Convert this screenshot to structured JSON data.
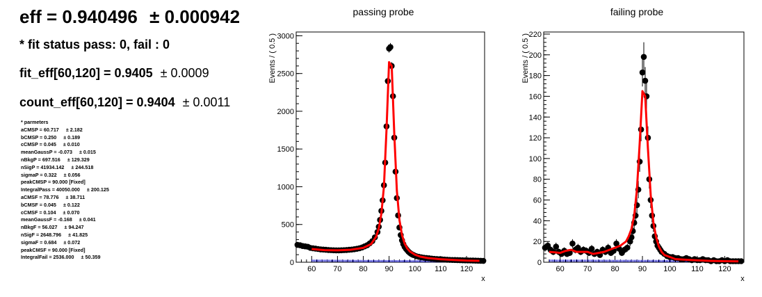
{
  "summary": {
    "eff_label": "eff = 0.940496",
    "eff_err": "± 0.000942",
    "fit_status": "* fit status pass: 0, fail : 0",
    "fit_eff_label": "fit_eff[60,120] = 0.9405",
    "fit_eff_err": "± 0.0009",
    "count_eff_label": "count_eff[60,120] = 0.9404",
    "count_eff_err": "± 0.0011"
  },
  "parameters": {
    "header": "* parmeters",
    "rows": [
      {
        "name": "aCMSP = 60.717",
        "err": "± 2.182"
      },
      {
        "name": "bCMSP = 0.250",
        "err": "± 0.189"
      },
      {
        "name": "cCMSP = 0.045",
        "err": "± 0.010"
      },
      {
        "name": "meanGaussP = -0.073",
        "err": "± 0.015"
      },
      {
        "name": "nBkgP = 697.516",
        "err": "± 129.329"
      },
      {
        "name": "nSigP = 41934.142",
        "err": "± 244.518"
      },
      {
        "name": "sigmaP = 0.322",
        "err": "± 0.056"
      },
      {
        "name": "peakCMSP = 90.000 [Fixed]",
        "err": ""
      },
      {
        "name": "IntegralPass = 40050.000",
        "err": "± 200.125"
      },
      {
        "name": "aCMSF = 78.776",
        "err": "± 38.711"
      },
      {
        "name": "bCMSF = 0.045",
        "err": "± 0.122"
      },
      {
        "name": "cCMSF = 0.104",
        "err": "± 0.070"
      },
      {
        "name": "meanGaussF = -0.168",
        "err": "± 0.041"
      },
      {
        "name": "nBkgF = 56.027",
        "err": "± 94.247"
      },
      {
        "name": "nSigF = 2648.796",
        "err": "± 41.825"
      },
      {
        "name": "sigmaF = 0.684",
        "err": "± 0.072"
      },
      {
        "name": "peakCMSF = 90.000 [Fixed]",
        "err": ""
      },
      {
        "name": "IntegralFail = 2536.000",
        "err": "± 50.359"
      }
    ]
  },
  "chart_data": [
    {
      "type": "scatter",
      "title": "passing probe",
      "xlabel": "x",
      "ylabel": "Events / ( 0.5 )",
      "xlim": [
        54,
        127
      ],
      "ylim": [
        0,
        3050
      ],
      "xticks": [
        60,
        70,
        80,
        90,
        100,
        110,
        120
      ],
      "xtick_labels": [
        "60",
        "70",
        "80",
        "90",
        "100",
        "110",
        "120"
      ],
      "yticks": [
        0,
        500,
        1000,
        1500,
        2000,
        2500,
        3000
      ],
      "ytick_labels": [
        "0",
        "500",
        "1000",
        "1500",
        "2000",
        "2500",
        "3000"
      ],
      "grid": false,
      "colors": {
        "data": "#000000",
        "fit": "#ff0000",
        "background": "#0000cc"
      },
      "points": {
        "x": [
          54.5,
          55.5,
          56.5,
          57.5,
          58.5,
          59.5,
          60.5,
          61.5,
          62.5,
          63.5,
          64.5,
          65.5,
          66.5,
          67.5,
          68.5,
          69.5,
          70.5,
          71.5,
          72.5,
          73.5,
          74.5,
          75.5,
          76.5,
          77.5,
          78.5,
          79.5,
          80.5,
          81.5,
          82.5,
          83.5,
          84.5,
          85.5,
          86.0,
          86.5,
          87.0,
          87.5,
          88.0,
          88.5,
          89.0,
          89.5,
          90.0,
          90.5,
          91.0,
          91.5,
          92.0,
          92.5,
          93.0,
          93.5,
          94.0,
          94.5,
          95.0,
          95.5,
          96.0,
          96.5,
          97.0,
          97.5,
          98.0,
          98.5,
          99.0,
          99.5,
          100.5,
          101.5,
          102.5,
          103.5,
          104.5,
          105.5,
          106.5,
          107.5,
          108.5,
          109.5,
          110.5,
          111.5,
          112.5,
          113.5,
          114.5,
          115.5,
          116.5,
          117.5,
          118.5,
          119.5,
          120.5,
          121.5,
          122.5,
          123.5,
          124.5,
          125.5,
          126.5
        ],
        "y": [
          230,
          225,
          215,
          210,
          205,
          190,
          185,
          180,
          175,
          170,
          168,
          165,
          162,
          160,
          158,
          157,
          157,
          158,
          160,
          162,
          165,
          168,
          172,
          178,
          185,
          195,
          210,
          225,
          250,
          280,
          330,
          400,
          470,
          560,
          680,
          820,
          1020,
          1320,
          1800,
          2400,
          2830,
          2850,
          2600,
          2200,
          1650,
          1200,
          850,
          620,
          460,
          360,
          290,
          240,
          205,
          180,
          160,
          140,
          125,
          112,
          102,
          95,
          80,
          72,
          65,
          60,
          56,
          52,
          48,
          45,
          42,
          40,
          38,
          35,
          33,
          31,
          30,
          29,
          28,
          27,
          26,
          25,
          24,
          23,
          22,
          21,
          20,
          19,
          18
        ]
      },
      "fit_curve": {
        "x": [
          60,
          65,
          70,
          75,
          80,
          83,
          85,
          86,
          87,
          88,
          89,
          90,
          91,
          92,
          93,
          94,
          95,
          96,
          97,
          98,
          100,
          102,
          105,
          110,
          115,
          120,
          125
        ],
        "y": [
          175,
          160,
          158,
          165,
          190,
          240,
          340,
          450,
          640,
          1000,
          1750,
          2650,
          2600,
          1700,
          950,
          560,
          360,
          250,
          185,
          145,
          100,
          75,
          55,
          40,
          30,
          22,
          18
        ]
      },
      "bkg_curve": {
        "x": [
          60,
          70,
          80,
          90,
          100,
          110,
          120,
          125
        ],
        "y": [
          20,
          18,
          16,
          15,
          13,
          12,
          10,
          10
        ]
      }
    },
    {
      "type": "scatter",
      "title": "failing probe",
      "xlabel": "x",
      "ylabel": "Events / ( 0.5 )",
      "xlim": [
        54,
        127
      ],
      "ylim": [
        0,
        222
      ],
      "xticks": [
        60,
        70,
        80,
        90,
        100,
        110,
        120
      ],
      "xtick_labels": [
        "60",
        "70",
        "80",
        "90",
        "100",
        "110",
        "120"
      ],
      "yticks": [
        0,
        20,
        40,
        60,
        80,
        100,
        120,
        140,
        160,
        180,
        200,
        220
      ],
      "ytick_labels": [
        "0",
        "20",
        "40",
        "60",
        "80",
        "100",
        "120",
        "140",
        "160",
        "180",
        "200",
        "220"
      ],
      "grid": false,
      "colors": {
        "data": "#000000",
        "fit": "#ff0000",
        "background": "#0000cc"
      },
      "points": {
        "x": [
          54.5,
          55.5,
          56.5,
          57.5,
          58.5,
          59.5,
          60.5,
          61.5,
          62.5,
          63.5,
          64.5,
          65.5,
          66.5,
          67.5,
          68.5,
          69.5,
          70.5,
          71.5,
          72.5,
          73.5,
          74.5,
          75.5,
          76.5,
          77.5,
          78.5,
          79.5,
          80.5,
          81.5,
          82.5,
          83.5,
          84.5,
          85.5,
          86.0,
          86.5,
          87.0,
          87.5,
          88.0,
          88.5,
          89.0,
          89.5,
          90.0,
          90.5,
          91.0,
          91.5,
          92.0,
          92.5,
          93.0,
          93.5,
          94.0,
          94.5,
          95.0,
          95.5,
          96.0,
          96.5,
          97.0,
          98.0,
          99.0,
          100.0,
          101.0,
          102.0,
          103.0,
          104.0,
          105.0,
          106.0,
          107.0,
          108.0,
          109.0,
          110.0,
          111.0,
          112.0,
          113.0,
          114.0,
          115.0,
          116.0,
          117.0,
          118.0,
          119.0,
          120.0,
          121.0,
          122.0,
          123.0,
          124.0,
          125.0,
          126.0
        ],
        "y": [
          14,
          16,
          12,
          10,
          15,
          10,
          8,
          11,
          8,
          9,
          18,
          12,
          14,
          10,
          12,
          11,
          9,
          13,
          8,
          10,
          7,
          12,
          10,
          14,
          9,
          11,
          18,
          13,
          9,
          12,
          14,
          20,
          24,
          30,
          38,
          45,
          55,
          70,
          97,
          128,
          183,
          198,
          175,
          160,
          120,
          80,
          60,
          45,
          35,
          25,
          20,
          16,
          14,
          12,
          10,
          8,
          6,
          5,
          5,
          4,
          4,
          3,
          3,
          4,
          3,
          2,
          3,
          2,
          2,
          3,
          2,
          2,
          1,
          2,
          1,
          1,
          2,
          1,
          2,
          1,
          1,
          1,
          1,
          1
        ]
      },
      "fit_curve": {
        "x": [
          56,
          58,
          60,
          62,
          64,
          66,
          68,
          70,
          72,
          74,
          76,
          78,
          80,
          82,
          84,
          85,
          86,
          87,
          88,
          89,
          90,
          91,
          92,
          93,
          94,
          95,
          96,
          97,
          98,
          100,
          102,
          105,
          110,
          115,
          120,
          125
        ],
        "y": [
          10,
          9.5,
          9,
          11,
          12,
          10,
          10,
          10,
          8,
          9,
          10,
          12,
          14,
          16,
          20,
          25,
          32,
          45,
          70,
          115,
          165,
          160,
          110,
          65,
          38,
          24,
          15,
          10,
          7,
          5,
          3,
          2.5,
          1.8,
          1.3,
          1,
          0.8
        ]
      },
      "bkg_curve": {
        "x": [
          56,
          70,
          80,
          90,
          100,
          110,
          120,
          125
        ],
        "y": [
          1.5,
          1.4,
          1.3,
          1.2,
          1.1,
          1,
          1,
          1
        ]
      }
    }
  ]
}
